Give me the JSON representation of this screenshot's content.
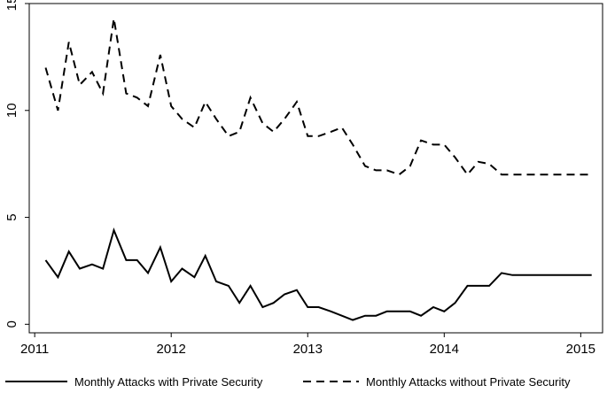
{
  "chart_data": {
    "type": "line",
    "title": "",
    "xlabel": "",
    "ylabel": "",
    "xlim": [
      2010.96,
      2015.16
    ],
    "ylim": [
      -0.4,
      15
    ],
    "x_ticks": [
      2011,
      2012,
      2013,
      2014,
      2015
    ],
    "x_tick_labels": [
      "2011",
      "2012",
      "2013",
      "2014",
      "2015"
    ],
    "y_ticks": [
      0,
      5,
      10,
      15
    ],
    "y_tick_labels": [
      "0",
      "5",
      "10",
      "15"
    ],
    "grid": false,
    "legend_position": "bottom",
    "x": [
      2011.08,
      2011.17,
      2011.25,
      2011.33,
      2011.42,
      2011.5,
      2011.58,
      2011.67,
      2011.75,
      2011.83,
      2011.92,
      2012.0,
      2012.08,
      2012.17,
      2012.25,
      2012.33,
      2012.42,
      2012.5,
      2012.58,
      2012.67,
      2012.75,
      2012.83,
      2012.92,
      2013.0,
      2013.08,
      2013.17,
      2013.25,
      2013.33,
      2013.42,
      2013.5,
      2013.58,
      2013.67,
      2013.75,
      2013.83,
      2013.92,
      2014.0,
      2014.08,
      2014.17,
      2014.25,
      2014.33,
      2014.42,
      2014.5,
      2014.58,
      2014.67,
      2014.75,
      2014.83,
      2014.92,
      2015.0,
      2015.08
    ],
    "series": [
      {
        "name": "Monthly Attacks with Private Security",
        "style": "solid",
        "color": "#000000",
        "values": [
          3.0,
          2.2,
          3.4,
          2.6,
          2.8,
          2.6,
          4.4,
          3.0,
          3.0,
          2.4,
          3.6,
          2.0,
          2.6,
          2.2,
          3.2,
          2.0,
          1.8,
          1.0,
          1.8,
          0.8,
          1.0,
          1.4,
          1.6,
          0.8,
          0.8,
          0.6,
          0.4,
          0.2,
          0.4,
          0.4,
          0.6,
          0.6,
          0.6,
          0.4,
          0.8,
          0.6,
          1.0,
          1.8,
          1.8,
          1.8,
          2.4,
          2.3,
          2.3,
          2.3,
          2.3,
          2.3,
          2.3,
          2.3,
          2.3
        ]
      },
      {
        "name": "Monthly Attacks without Private Security",
        "style": "dashed",
        "color": "#000000",
        "values": [
          12.0,
          10.0,
          13.2,
          11.2,
          11.8,
          10.8,
          14.3,
          10.8,
          10.6,
          10.2,
          12.6,
          10.2,
          9.6,
          9.2,
          10.4,
          9.6,
          8.8,
          9.0,
          10.6,
          9.4,
          9.0,
          9.6,
          10.4,
          8.8,
          8.8,
          9.0,
          9.2,
          8.4,
          7.4,
          7.2,
          7.2,
          7.0,
          7.4,
          8.6,
          8.4,
          8.4,
          7.8,
          7.0,
          7.6,
          7.5,
          7.0,
          7.0,
          7.0,
          7.0,
          7.0,
          7.0,
          7.0,
          7.0,
          7.0
        ]
      }
    ]
  }
}
